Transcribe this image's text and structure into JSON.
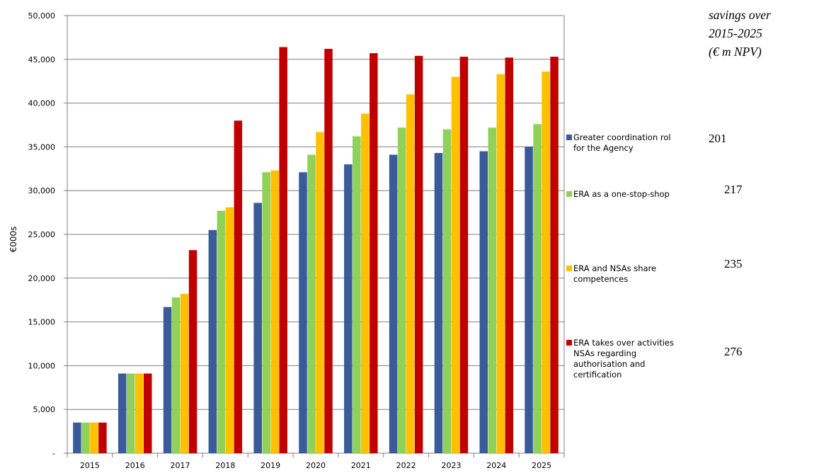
{
  "chart_data": {
    "type": "bar",
    "ylabel": "€000s",
    "xlabel": "",
    "ylim": [
      0,
      50000
    ],
    "y_ticks": [
      "-",
      "5,000",
      "10,000",
      "15,000",
      "20,000",
      "25,000",
      "30,000",
      "35,000",
      "40,000",
      "45,000",
      "50,000"
    ],
    "grid": true,
    "legend_position": "right",
    "categories": [
      "2015",
      "2016",
      "2017",
      "2018",
      "2019",
      "2020",
      "2021",
      "2022",
      "2023",
      "2024",
      "2025"
    ],
    "series": [
      {
        "name": "Greater coordination role for the Agency",
        "color": "#3a5a9a",
        "values": [
          3500,
          9100,
          16700,
          25500,
          28600,
          32100,
          33000,
          34100,
          34300,
          34500,
          35000
        ]
      },
      {
        "name": "ERA as a one-stop-shop",
        "color": "#8fd15a",
        "values": [
          3500,
          9100,
          17800,
          27700,
          32100,
          34100,
          36200,
          37200,
          37000,
          37200,
          37600
        ]
      },
      {
        "name": "ERA and NSAs share competences",
        "color": "#ffc000",
        "values": [
          3500,
          9100,
          18200,
          28100,
          32300,
          36700,
          38800,
          41000,
          43000,
          43300,
          43600
        ]
      },
      {
        "name": "ERA takes over activities NSAs regarding authorisation and certification",
        "color": "#c00000",
        "values": [
          3500,
          9100,
          23200,
          38000,
          46400,
          46200,
          45700,
          45400,
          45300,
          45200,
          45300
        ]
      }
    ]
  },
  "legend": [
    {
      "lines": [
        "Greater coordination rol",
        "for the Agency"
      ],
      "color": "#3a5a9a"
    },
    {
      "lines": [
        "ERA as a one-stop-shop"
      ],
      "color": "#8fd15a"
    },
    {
      "lines": [
        "ERA and NSAs share",
        "competences"
      ],
      "color": "#ffc000"
    },
    {
      "lines": [
        "ERA takes over activities",
        "NSAs regarding",
        "authorisation and",
        "certification"
      ],
      "color": "#c00000"
    }
  ],
  "note": {
    "title_lines": [
      "savings over",
      "2015-2025",
      "(€ m NPV)"
    ],
    "values": [
      "201",
      "217",
      "235",
      "276"
    ]
  }
}
